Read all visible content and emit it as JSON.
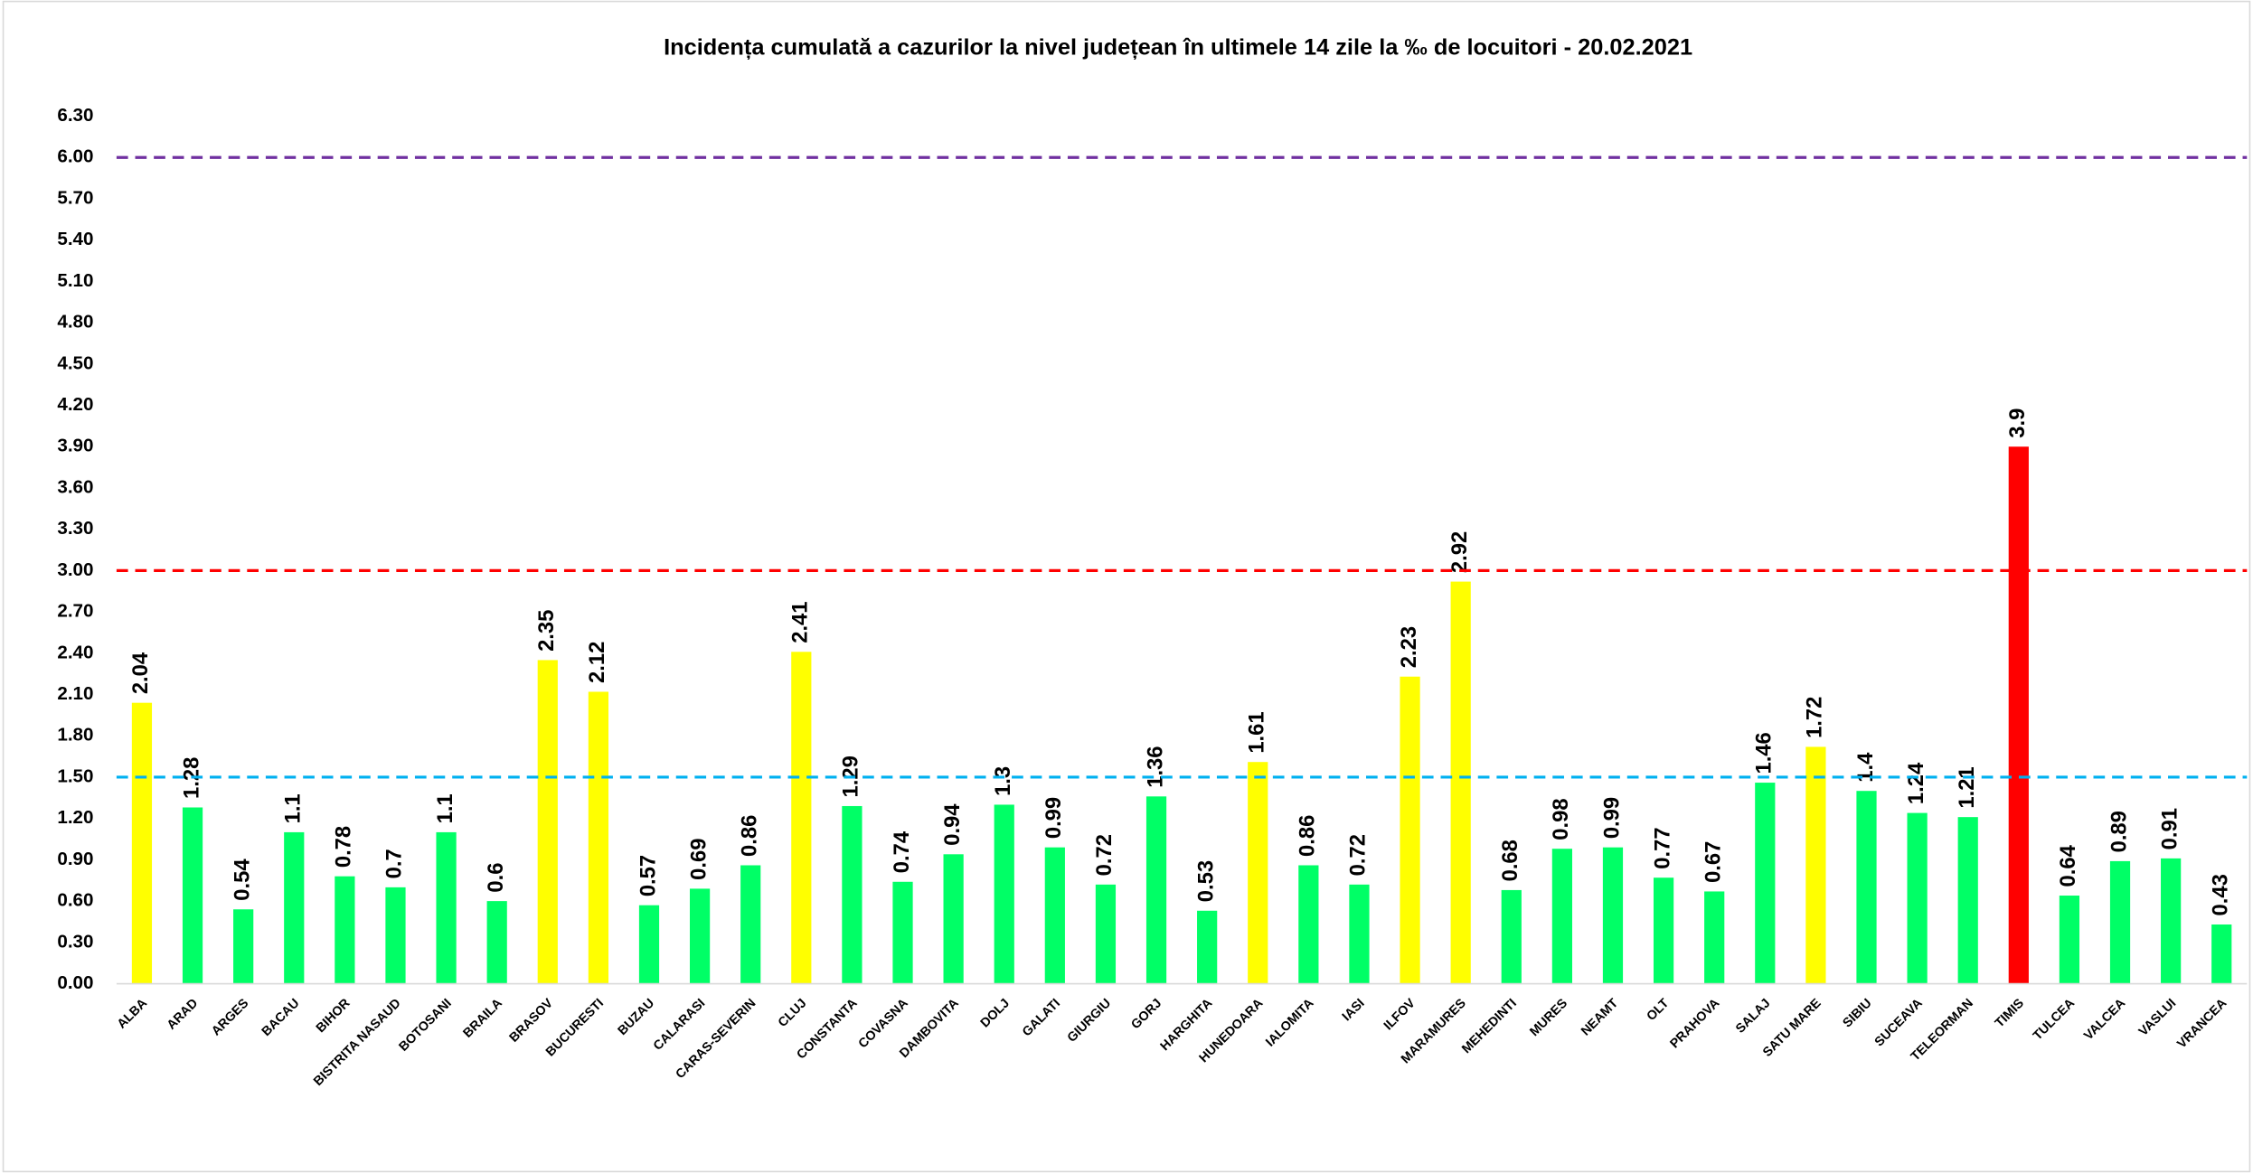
{
  "chart_data": {
    "type": "bar",
    "title": "Incidența cumulată a cazurilor la nivel județean în ultimele 14 zile la ‰ de locuitori - 20.02.2021",
    "categories": [
      "ALBA",
      "ARAD",
      "ARGES",
      "BACAU",
      "BIHOR",
      "BISTRITA NASAUD",
      "BOTOSANI",
      "BRAILA",
      "BRASOV",
      "BUCURESTI",
      "BUZAU",
      "CALARASI",
      "CARAS-SEVERIN",
      "CLUJ",
      "CONSTANTA",
      "COVASNA",
      "DAMBOVITA",
      "DOLJ",
      "GALATI",
      "GIURGIU",
      "GORJ",
      "HARGHITA",
      "HUNEDOARA",
      "IALOMITA",
      "IASI",
      "ILFOV",
      "MARAMURES",
      "MEHEDINTI",
      "MURES",
      "NEAMT",
      "OLT",
      "PRAHOVA",
      "SALAJ",
      "SATU MARE",
      "SIBIU",
      "SUCEAVA",
      "TELEORMAN",
      "TIMIS",
      "TULCEA",
      "VALCEA",
      "VASLUI",
      "VRANCEA"
    ],
    "values": [
      2.04,
      1.28,
      0.54,
      1.1,
      0.78,
      0.7,
      1.1,
      0.6,
      2.35,
      2.12,
      0.57,
      0.69,
      0.86,
      2.41,
      1.29,
      0.74,
      0.94,
      1.3,
      0.99,
      0.72,
      1.36,
      0.53,
      1.61,
      0.86,
      0.72,
      2.23,
      2.92,
      0.68,
      0.98,
      0.99,
      0.77,
      0.67,
      1.46,
      1.72,
      1.4,
      1.24,
      1.21,
      3.9,
      0.64,
      0.89,
      0.91,
      0.43
    ],
    "colors": [
      "#ffff00",
      "#00ff66",
      "#00ff66",
      "#00ff66",
      "#00ff66",
      "#00ff66",
      "#00ff66",
      "#00ff66",
      "#ffff00",
      "#ffff00",
      "#00ff66",
      "#00ff66",
      "#00ff66",
      "#ffff00",
      "#00ff66",
      "#00ff66",
      "#00ff66",
      "#00ff66",
      "#00ff66",
      "#00ff66",
      "#00ff66",
      "#00ff66",
      "#ffff00",
      "#00ff66",
      "#00ff66",
      "#ffff00",
      "#ffff00",
      "#00ff66",
      "#00ff66",
      "#00ff66",
      "#00ff66",
      "#00ff66",
      "#00ff66",
      "#ffff00",
      "#00ff66",
      "#00ff66",
      "#00ff66",
      "#ff0000",
      "#00ff66",
      "#00ff66",
      "#00ff66",
      "#00ff66"
    ],
    "ylim": [
      0,
      6.3
    ],
    "yticks": [
      {
        "value": 0,
        "label": "0.00"
      },
      {
        "value": 0.3,
        "label": "0.30"
      },
      {
        "value": 0.6,
        "label": "0.60"
      },
      {
        "value": 0.9,
        "label": "0.90"
      },
      {
        "value": 1.2,
        "label": "1.20"
      },
      {
        "value": 1.5,
        "label": "1.50"
      },
      {
        "value": 1.8,
        "label": "1.80"
      },
      {
        "value": 2.1,
        "label": "2.10"
      },
      {
        "value": 2.4,
        "label": "2.40"
      },
      {
        "value": 2.7,
        "label": "2.70"
      },
      {
        "value": 3,
        "label": "3.00"
      },
      {
        "value": 3.3,
        "label": "3.30"
      },
      {
        "value": 3.6,
        "label": "3.60"
      },
      {
        "value": 3.9,
        "label": "3.90"
      },
      {
        "value": 4.2,
        "label": "4.20"
      },
      {
        "value": 4.5,
        "label": "4.50"
      },
      {
        "value": 4.8,
        "label": "4.80"
      },
      {
        "value": 5.1,
        "label": "5.10"
      },
      {
        "value": 5.4,
        "label": "5.40"
      },
      {
        "value": 5.7,
        "label": "5.70"
      },
      {
        "value": 6,
        "label": "6.00"
      },
      {
        "value": 6.3,
        "label": "6.30"
      }
    ],
    "reference_lines": [
      {
        "value": 6,
        "color": "#7030a0"
      },
      {
        "value": 3,
        "color": "#ff0000"
      },
      {
        "value": 1.5,
        "color": "#00b0f0"
      }
    ],
    "grid": false
  }
}
